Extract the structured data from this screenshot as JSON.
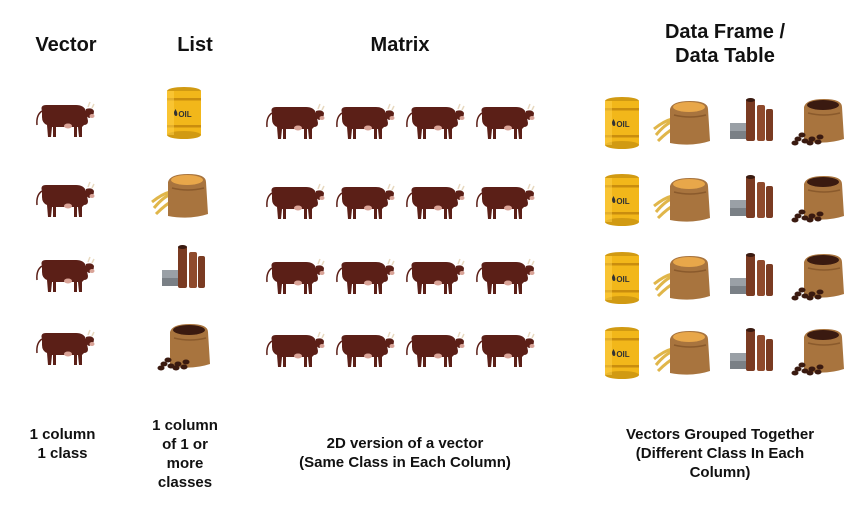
{
  "columns": {
    "vector": {
      "title": "Vector",
      "caption": "1 column\n1 class"
    },
    "list": {
      "title": "List",
      "caption": "1 column\nof 1 or\nmore\nclasses"
    },
    "matrix": {
      "title": "Matrix",
      "caption": "2D version of a vector\n(Same Class in Each Column)"
    },
    "dataframe": {
      "title": "Data Frame /\nData Table",
      "caption": "Vectors Grouped Together\n(Different Class In Each\nColumn)"
    }
  },
  "icons": {
    "oil_barrel_label": "OIL",
    "vector_items": [
      "cow-icon",
      "cow-icon",
      "cow-icon",
      "cow-icon"
    ],
    "list_items": [
      "oil-barrel-icon",
      "grain-sack-icon",
      "metal-pipes-icon",
      "coffee-sack-icon"
    ],
    "matrix_rows": 4,
    "matrix_cols": 4,
    "dataframe_columns": [
      "oil-barrel-icon",
      "grain-sack-icon",
      "metal-pipes-icon",
      "coffee-sack-icon"
    ]
  },
  "colors": {
    "cow": "#5b1f17",
    "oil_barrel": "#f2b71a",
    "sack": "#a8743e",
    "pipes": "#7a3b22",
    "coffee": "#3a1a10"
  }
}
